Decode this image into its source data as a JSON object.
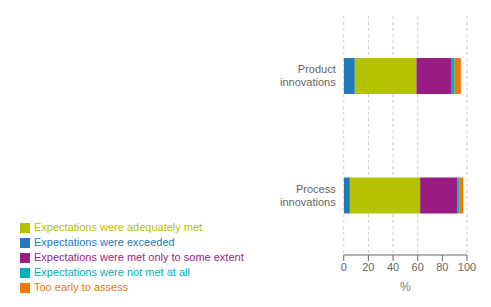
{
  "chart_data": {
    "type": "bar",
    "orientation": "horizontal",
    "stacked": true,
    "categories": [
      "Process\ninnovations",
      "Product\ninnovations"
    ],
    "series": [
      {
        "name": "Expectations were exceeded",
        "color": "#1f7ab5",
        "values": [
          5,
          9
        ]
      },
      {
        "name": "Expectations were adequately met",
        "color": "#b5c200",
        "values": [
          57,
          50
        ]
      },
      {
        "name": "Expectations were met only to some extent",
        "color": "#9b1d84",
        "values": [
          30,
          28
        ]
      },
      {
        "name": "Expectations were not met at all",
        "color": "#00b0b9",
        "values": [
          2,
          3
        ]
      },
      {
        "name": "Too early to assess",
        "color": "#f07800",
        "values": [
          3,
          5
        ]
      }
    ],
    "xlabel": "%",
    "xlim": [
      0,
      100
    ],
    "xticks": [
      0,
      20,
      40,
      60,
      80,
      100
    ],
    "grid": true,
    "legend": "bottom"
  }
}
